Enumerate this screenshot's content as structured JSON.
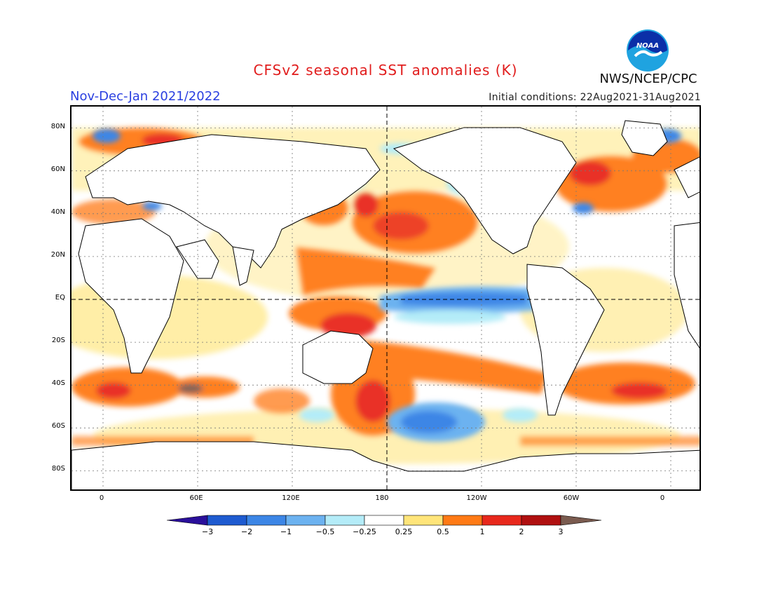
{
  "header": {
    "title": "CFSv2 seasonal SST anomalies (K)",
    "period": "Nov-Dec-Jan 2021/2022",
    "initial_conditions": "Initial conditions: 22Aug2021-31Aug2021",
    "agency": "NWS/NCEP/CPC",
    "logo_text": "NOAA"
  },
  "map": {
    "lat_labels": [
      "80N",
      "60N",
      "40N",
      "20N",
      "EQ",
      "20S",
      "40S",
      "60S",
      "80S"
    ],
    "lon_labels": [
      "0",
      "60E",
      "120E",
      "180",
      "120W",
      "60W",
      "0"
    ]
  },
  "colorbar": {
    "ticks": [
      "−3",
      "−2",
      "−1",
      "−0.5",
      "−0.25",
      "0.25",
      "0.5",
      "1",
      "2",
      "3"
    ],
    "colors": [
      "#2a0f9a",
      "#1e5bd0",
      "#3c86e6",
      "#6cb2f0",
      "#b4ecf8",
      "#ffffff",
      "#ffe57a",
      "#ff7a15",
      "#e8281c",
      "#b01010",
      "#7a5b4f"
    ]
  },
  "colors": {
    "land": "#ffffff",
    "coast": "#000000",
    "title": "#e11d1d",
    "period": "#2a3fe0"
  }
}
